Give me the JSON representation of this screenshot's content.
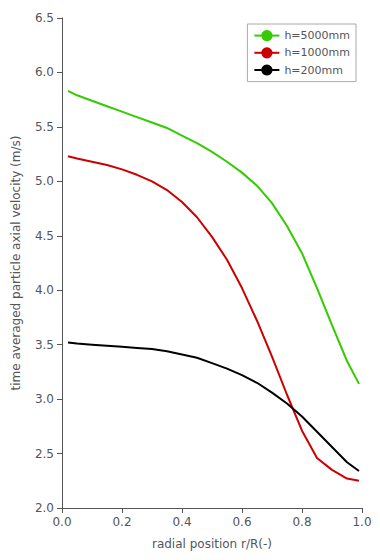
{
  "chart_data": {
    "type": "line",
    "xlabel": "radial position r/R(-)",
    "ylabel": "time averaged particle axial velocity (m/s)",
    "x": [
      0.02,
      0.05,
      0.1,
      0.15,
      0.2,
      0.25,
      0.3,
      0.35,
      0.4,
      0.45,
      0.5,
      0.55,
      0.6,
      0.65,
      0.7,
      0.75,
      0.8,
      0.85,
      0.9,
      0.95,
      0.99
    ],
    "series": [
      {
        "name": "h=5000mm",
        "color": "#33cc00",
        "values": [
          5.83,
          5.79,
          5.74,
          5.69,
          5.64,
          5.59,
          5.54,
          5.49,
          5.42,
          5.35,
          5.27,
          5.18,
          5.08,
          4.96,
          4.8,
          4.59,
          4.34,
          4.02,
          3.68,
          3.35,
          3.14
        ]
      },
      {
        "name": "h=1000mm",
        "color": "#cc0000",
        "values": [
          5.23,
          5.21,
          5.18,
          5.15,
          5.11,
          5.06,
          5.0,
          4.92,
          4.81,
          4.67,
          4.49,
          4.28,
          4.02,
          3.72,
          3.39,
          3.04,
          2.71,
          2.46,
          2.35,
          2.27,
          2.25
        ]
      },
      {
        "name": "h=200mm",
        "color": "#000000",
        "values": [
          3.52,
          3.51,
          3.5,
          3.49,
          3.48,
          3.47,
          3.46,
          3.44,
          3.41,
          3.38,
          3.33,
          3.28,
          3.22,
          3.15,
          3.06,
          2.96,
          2.84,
          2.7,
          2.56,
          2.42,
          2.34
        ]
      }
    ],
    "xlim": [
      0.0,
      1.0
    ],
    "ylim": [
      2.0,
      6.5
    ],
    "xticks": [
      {
        "value": 0,
        "label": "0.0"
      },
      0.2,
      0.4,
      0.6,
      0.8,
      {
        "value": 1,
        "label": "1.0"
      }
    ],
    "yticks": [
      {
        "value": 2,
        "label": "2.0"
      },
      2.5,
      {
        "value": 3,
        "label": "3.0"
      },
      3.5,
      {
        "value": 4,
        "label": "4.0"
      },
      4.5,
      {
        "value": 5,
        "label": "5.0"
      },
      5.5,
      {
        "value": 6,
        "label": "6.0"
      },
      6.5
    ],
    "grid": false,
    "legend": "upper right"
  }
}
